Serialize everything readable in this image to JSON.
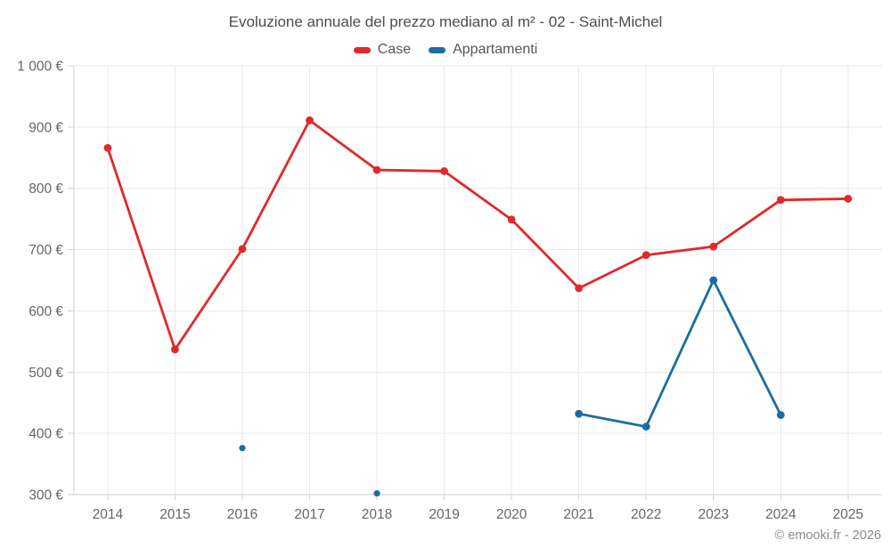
{
  "chart_data": {
    "type": "line",
    "title": "Evoluzione annuale del prezzo mediano al m² - 02 - Saint-Michel",
    "categories": [
      "2014",
      "2015",
      "2016",
      "2017",
      "2018",
      "2019",
      "2020",
      "2021",
      "2022",
      "2023",
      "2024",
      "2025"
    ],
    "series": [
      {
        "name": "Case",
        "color": "#e0292b",
        "values": [
          866,
          537,
          701,
          911,
          830,
          828,
          749,
          637,
          691,
          705,
          781,
          783
        ]
      },
      {
        "name": "Appartamenti",
        "color": "#1a6da3",
        "values": [
          null,
          null,
          376,
          null,
          302,
          null,
          null,
          432,
          411,
          650,
          430,
          null
        ]
      }
    ],
    "ylim": [
      300,
      1000
    ],
    "y_tick_step": 100,
    "y_tick_labels": [
      "300 €",
      "400 €",
      "500 €",
      "600 €",
      "700 €",
      "800 €",
      "900 €",
      "1 000 €"
    ],
    "xlabel": "",
    "ylabel": "",
    "grid": true,
    "legend_position": "top",
    "grid_color": "#e8e8e8",
    "axis_color": "#cfcfcf",
    "tick_label_color": "#666666"
  },
  "footer": {
    "copyright": "© emooki.fr - 2026"
  }
}
